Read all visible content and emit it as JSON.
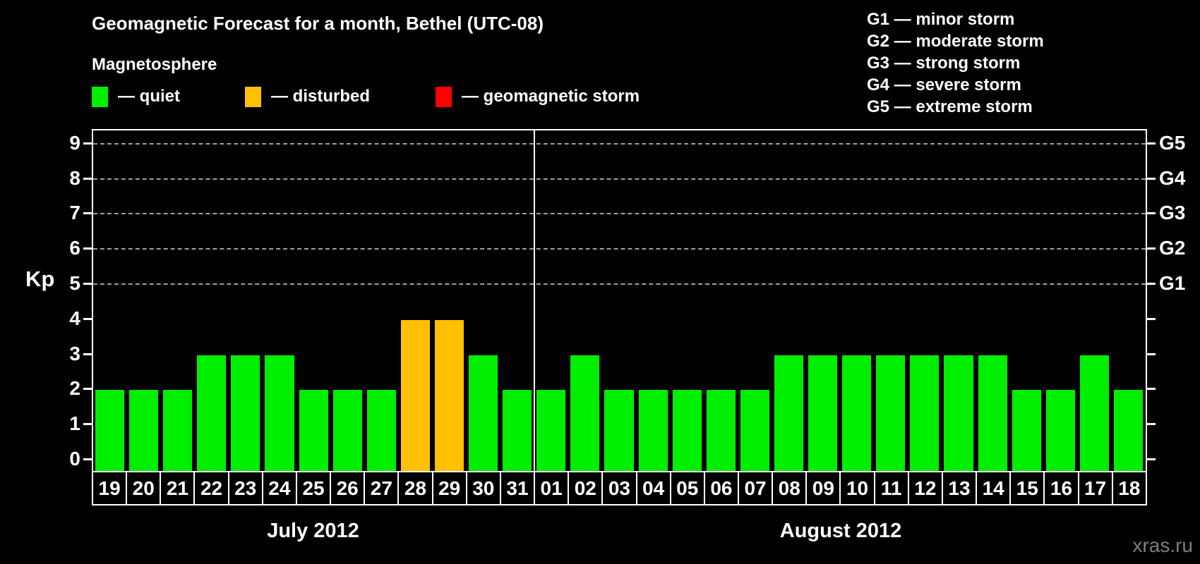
{
  "title": "Geomagnetic Forecast for a month, Bethel (UTC-08)",
  "legend": {
    "heading": "Magnetosphere",
    "items": [
      {
        "name": "quiet",
        "label": "— quiet",
        "color": "#00ee00"
      },
      {
        "name": "disturbed",
        "label": "— disturbed",
        "color": "#ffc000"
      },
      {
        "name": "storm",
        "label": "— geomagnetic storm",
        "color": "#ff0000"
      }
    ]
  },
  "g_levels": [
    "G1 — minor storm",
    "G2 — moderate storm",
    "G3 — strong storm",
    "G4 — severe storm",
    "G5 — extreme storm"
  ],
  "axes": {
    "y_label": "Kp",
    "y_ticks": [
      0,
      1,
      2,
      3,
      4,
      5,
      6,
      7,
      8,
      9
    ],
    "right_scale": [
      {
        "kp": 5,
        "label": "G1"
      },
      {
        "kp": 6,
        "label": "G2"
      },
      {
        "kp": 7,
        "label": "G3"
      },
      {
        "kp": 8,
        "label": "G4"
      },
      {
        "kp": 9,
        "label": "G5"
      }
    ]
  },
  "watermark": "xras.ru",
  "chart_data": {
    "type": "bar",
    "title": "Geomagnetic Forecast for a month, Bethel (UTC-08)",
    "ylabel": "Kp",
    "ylim": [
      0,
      9
    ],
    "grid": "dashed horizontal lines at Kp 5-9",
    "gridlines_at_kp": [
      5,
      6,
      7,
      8,
      9
    ],
    "status_colors": {
      "quiet": "#00ee00",
      "disturbed": "#ffc000",
      "storm": "#ff0000"
    },
    "series": [
      {
        "month": "July 2012",
        "points": [
          {
            "day": "19",
            "kp": 2,
            "status": "quiet"
          },
          {
            "day": "20",
            "kp": 2,
            "status": "quiet"
          },
          {
            "day": "21",
            "kp": 2,
            "status": "quiet"
          },
          {
            "day": "22",
            "kp": 3,
            "status": "quiet"
          },
          {
            "day": "23",
            "kp": 3,
            "status": "quiet"
          },
          {
            "day": "24",
            "kp": 3,
            "status": "quiet"
          },
          {
            "day": "25",
            "kp": 2,
            "status": "quiet"
          },
          {
            "day": "26",
            "kp": 2,
            "status": "quiet"
          },
          {
            "day": "27",
            "kp": 2,
            "status": "quiet"
          },
          {
            "day": "28",
            "kp": 4,
            "status": "disturbed"
          },
          {
            "day": "29",
            "kp": 4,
            "status": "disturbed"
          },
          {
            "day": "30",
            "kp": 3,
            "status": "quiet"
          },
          {
            "day": "31",
            "kp": 2,
            "status": "quiet"
          }
        ]
      },
      {
        "month": "August 2012",
        "points": [
          {
            "day": "01",
            "kp": 2,
            "status": "quiet"
          },
          {
            "day": "02",
            "kp": 3,
            "status": "quiet"
          },
          {
            "day": "03",
            "kp": 2,
            "status": "quiet"
          },
          {
            "day": "04",
            "kp": 2,
            "status": "quiet"
          },
          {
            "day": "05",
            "kp": 2,
            "status": "quiet"
          },
          {
            "day": "06",
            "kp": 2,
            "status": "quiet"
          },
          {
            "day": "07",
            "kp": 2,
            "status": "quiet"
          },
          {
            "day": "08",
            "kp": 3,
            "status": "quiet"
          },
          {
            "day": "09",
            "kp": 3,
            "status": "quiet"
          },
          {
            "day": "10",
            "kp": 3,
            "status": "quiet"
          },
          {
            "day": "11",
            "kp": 3,
            "status": "quiet"
          },
          {
            "day": "12",
            "kp": 3,
            "status": "quiet"
          },
          {
            "day": "13",
            "kp": 3,
            "status": "quiet"
          },
          {
            "day": "14",
            "kp": 3,
            "status": "quiet"
          },
          {
            "day": "15",
            "kp": 2,
            "status": "quiet"
          },
          {
            "day": "16",
            "kp": 2,
            "status": "quiet"
          },
          {
            "day": "17",
            "kp": 3,
            "status": "quiet"
          },
          {
            "day": "18",
            "kp": 2,
            "status": "quiet"
          }
        ]
      }
    ]
  }
}
